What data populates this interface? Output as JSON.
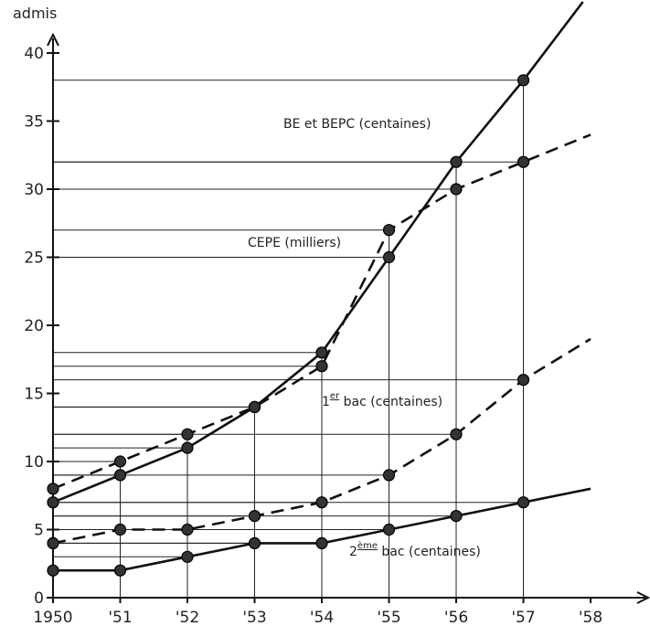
{
  "chart_data": {
    "type": "line",
    "ylabel": "admis",
    "x": [
      1950,
      1951,
      1952,
      1953,
      1954,
      1955,
      1956,
      1957,
      1958
    ],
    "x_tick_labels": [
      "1950",
      "'51",
      "'52",
      "'53",
      "'54",
      "'55",
      "'56",
      "'57",
      "'58"
    ],
    "xlim": [
      1950,
      1958
    ],
    "ylim": [
      0,
      40
    ],
    "y_ticks": [
      0,
      5,
      10,
      15,
      20,
      25,
      30,
      35,
      40
    ],
    "y_tick_labels": [
      "0",
      "5",
      "10",
      "15",
      "20",
      "25",
      "30",
      "35",
      "40"
    ],
    "grid": "horizontal lines from each data point to the y-axis, vertical lines at each year",
    "series": [
      {
        "name": "BE et BEPC (centaines)",
        "style": "solid",
        "points": [
          [
            1950,
            7
          ],
          [
            1951,
            9
          ],
          [
            1952,
            11
          ],
          [
            1953,
            14
          ],
          [
            1954,
            18
          ],
          [
            1955,
            25
          ],
          [
            1956,
            32
          ],
          [
            1957,
            38
          ]
        ],
        "extension": [
          1958,
          44.5
        ]
      },
      {
        "name": "CEPE (milliers)",
        "style": "dashed",
        "points": [
          [
            1950,
            8
          ],
          [
            1951,
            10
          ],
          [
            1952,
            12
          ],
          [
            1953,
            14
          ],
          [
            1954,
            17
          ],
          [
            1955,
            27
          ],
          [
            1956,
            30
          ],
          [
            1957,
            32
          ]
        ],
        "extension": [
          1958,
          34
        ]
      },
      {
        "name": "1er bac (centaines)",
        "style": "dashed",
        "points": [
          [
            1950,
            4
          ],
          [
            1951,
            5
          ],
          [
            1952,
            5
          ],
          [
            1953,
            6
          ],
          [
            1954,
            7
          ],
          [
            1955,
            9
          ],
          [
            1956,
            12
          ],
          [
            1957,
            16
          ]
        ],
        "extension": [
          1958,
          19
        ]
      },
      {
        "name": "2ème bac (centaines)",
        "style": "solid",
        "points": [
          [
            1950,
            2
          ],
          [
            1951,
            2
          ],
          [
            1952,
            3
          ],
          [
            1953,
            4
          ],
          [
            1954,
            4
          ],
          [
            1955,
            5
          ],
          [
            1956,
            6
          ],
          [
            1957,
            7
          ]
        ],
        "extension": [
          1958,
          8
        ]
      }
    ]
  },
  "labels": {
    "be_bepc": "BE et BEPC (centaines)",
    "cepe": "CEPE (milliers)",
    "bac1_pre": "1",
    "bac1_sup": "er",
    "bac1_post": " bac (centaines)",
    "bac2_pre": "2",
    "bac2_sup": "ème",
    "bac2_post": " bac (centaines)"
  }
}
